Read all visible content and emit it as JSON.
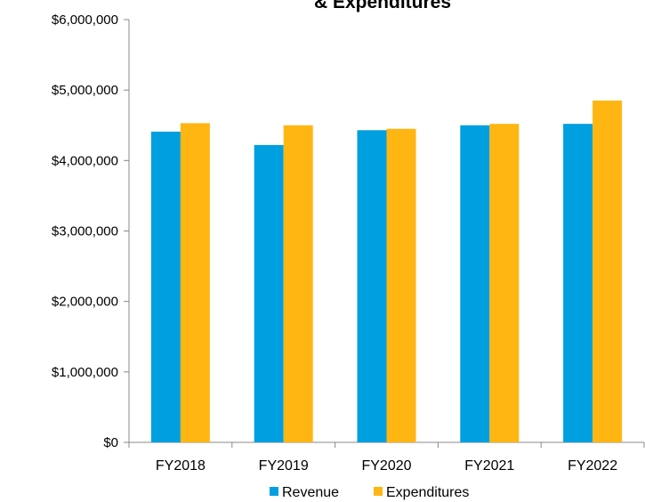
{
  "chart_data": {
    "type": "bar",
    "title": "& Expenditures",
    "categories": [
      "FY2018",
      "FY2019",
      "FY2020",
      "FY2021",
      "FY2022"
    ],
    "series": [
      {
        "name": "Revenue",
        "color": "#009fdf",
        "values": [
          4410000,
          4220000,
          4430000,
          4500000,
          4520000
        ]
      },
      {
        "name": "Expenditures",
        "color": "#ffb612",
        "values": [
          4530000,
          4500000,
          4450000,
          4520000,
          4850000
        ]
      }
    ],
    "ylim": [
      0,
      6000000
    ],
    "yticks": [
      {
        "value": 0,
        "label": "$0"
      },
      {
        "value": 1000000,
        "label": "$1,000,000"
      },
      {
        "value": 2000000,
        "label": "$2,000,000"
      },
      {
        "value": 3000000,
        "label": "$3,000,000"
      },
      {
        "value": 4000000,
        "label": "$4,000,000"
      },
      {
        "value": 5000000,
        "label": "$5,000,000"
      },
      {
        "value": 6000000,
        "label": "$6,000,000"
      }
    ],
    "grid": false,
    "legend": "bottom"
  }
}
